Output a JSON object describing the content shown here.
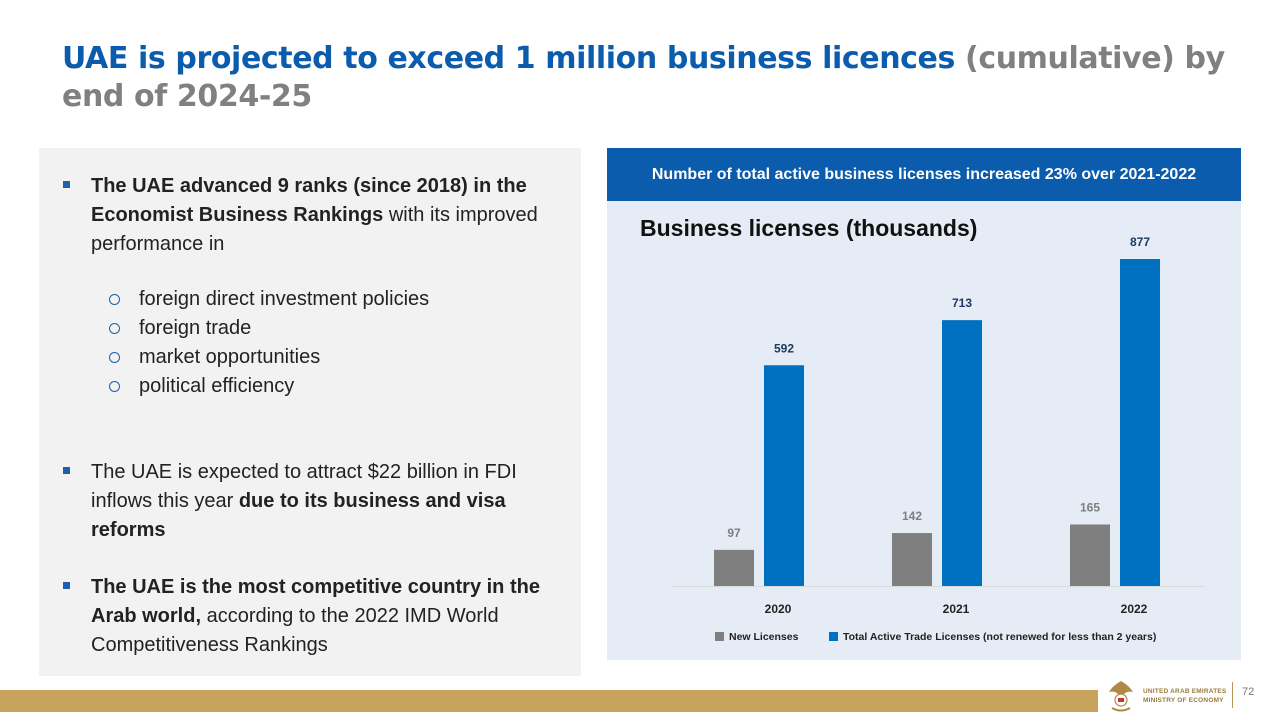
{
  "slide": {
    "title_blue": "UAE is projected to exceed 1 million business licences",
    "title_gray": " (cumulative) by end of 2024-25",
    "page_number": "72"
  },
  "left": {
    "b1_bold": "The UAE advanced 9 ranks (since 2018)  in the Economist Business Rankings",
    "b1_rest": " with its improved performance in",
    "sub_items": [
      "foreign direct investment policies",
      "foreign trade",
      "market opportunities",
      "political efficiency"
    ],
    "b2_start": "The UAE is expected to attract $22 billion in FDI inflows this year ",
    "b2_bold": "due to its business and visa reforms",
    "b3_bold": "The UAE is the most competitive country in the Arab world,",
    "b3_rest": " according to the 2022 IMD World Competitiveness Rankings"
  },
  "right": {
    "banner": "Number of total active business licenses increased 23% over 2021-2022"
  },
  "chart_data": {
    "type": "bar",
    "title": "Business licenses (thousands)",
    "categories": [
      "2020",
      "2021",
      "2022"
    ],
    "series": [
      {
        "name": "New Licenses",
        "values": [
          97,
          142,
          165
        ],
        "color": "#7f7f7f",
        "label_color": "#7f7f7f"
      },
      {
        "name": "Total Active Trade Licenses (not renewed for less than 2 years)",
        "values": [
          592,
          713,
          877
        ],
        "color": "#0070c0",
        "label_color": "#1f3864"
      }
    ],
    "ylim": [
      0,
      877
    ],
    "grid": false,
    "legend_position": "bottom"
  },
  "footer": {
    "ministry_line1": "UNITED ARAB EMIRATES",
    "ministry_line2": "MINISTRY OF ECONOMY"
  },
  "colors": {
    "accent_blue": "#0b5cad",
    "title_gray": "#808080",
    "footer_gold": "#c7a35d"
  }
}
